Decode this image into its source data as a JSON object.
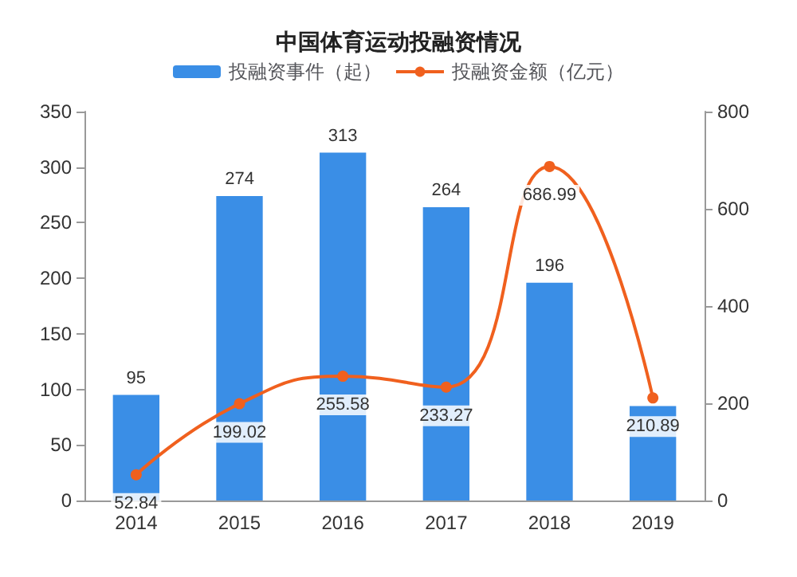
{
  "chart_data": {
    "type": "bar",
    "title": "中国体育运动投融资情况",
    "categories": [
      "2014",
      "2015",
      "2016",
      "2017",
      "2018",
      "2019"
    ],
    "series": [
      {
        "name": "投融资事件（起）",
        "type": "bar",
        "color": "#3a8ee6",
        "values": [
          95,
          274,
          313,
          264,
          196,
          85
        ],
        "value_labels": [
          "95",
          "274",
          "313",
          "264",
          "196",
          null
        ]
      },
      {
        "name": "投融资金额（亿元）",
        "type": "line",
        "axis": "y2",
        "color": "#f0601e",
        "values": [
          52.84,
          199.02,
          255.58,
          233.27,
          686.99,
          210.89
        ],
        "value_labels": [
          "52.84",
          "199.02",
          "255.58",
          "233.27",
          "686.99",
          "210.89"
        ]
      }
    ],
    "ylim": [
      0,
      350
    ],
    "yticks": [
      0,
      50,
      100,
      150,
      200,
      250,
      300,
      350
    ],
    "y2lim": [
      0,
      800
    ],
    "y2ticks": [
      0,
      200,
      400,
      600,
      800
    ],
    "legend": "top",
    "grid": false,
    "marker": "circle",
    "line_style": "solid"
  }
}
